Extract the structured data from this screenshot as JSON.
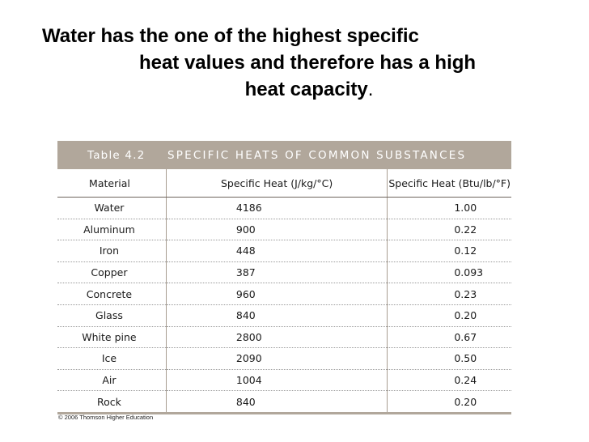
{
  "slide": {
    "title_lines": [
      "Water has the one of the highest specific",
      "heat values and therefore has a high",
      "heat capacity"
    ],
    "title_period": "."
  },
  "table": {
    "caption_number": "Table 4.2",
    "caption_title": "SPECIFIC HEATS OF COMMON SUBSTANCES",
    "columns": [
      "Material",
      "Specific Heat (J/kg/°C)",
      "Specific Heat (Btu/lb/°F)"
    ],
    "rows": [
      [
        "Water",
        "4186",
        "1.00"
      ],
      [
        "Aluminum",
        "900",
        "0.22"
      ],
      [
        "Iron",
        "448",
        "0.12"
      ],
      [
        "Copper",
        "387",
        "0.093"
      ],
      [
        "Concrete",
        "960",
        "0.23"
      ],
      [
        "Glass",
        "840",
        "0.20"
      ],
      [
        "White pine",
        "2800",
        "0.67"
      ],
      [
        "Ice",
        "2090",
        "0.50"
      ],
      [
        "Air",
        "1004",
        "0.24"
      ],
      [
        "Rock",
        "840",
        "0.20"
      ]
    ],
    "colors": {
      "caption_background": "#b1a79b",
      "caption_text": "#ffffff"
    }
  },
  "footer": {
    "copyright": "© 2006 Thomson Higher Education"
  }
}
